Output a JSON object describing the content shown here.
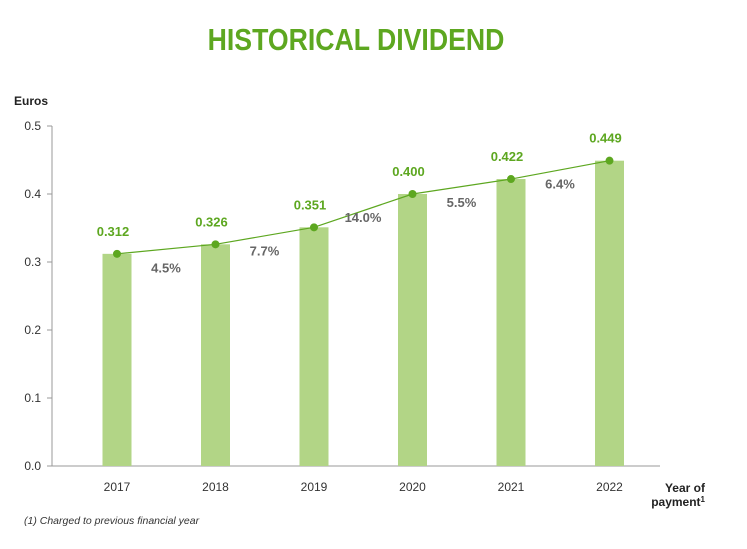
{
  "title": "HISTORICAL DIVIDEND",
  "footnote": "(1) Charged to previous financial year",
  "colors": {
    "accent": "#5da720",
    "bar": "#b2d586",
    "growth_text": "#666666",
    "axis": "#999999"
  },
  "chart_data": {
    "type": "bar",
    "title": "HISTORICAL DIVIDEND",
    "ylabel": "Euros",
    "xlabel": "Year of payment",
    "xlabel_superscript": "1",
    "ylim": [
      0,
      0.5
    ],
    "y_ticks": [
      "0.0",
      "0.1",
      "0.2",
      "0.3",
      "0.4",
      "0.5"
    ],
    "categories": [
      "2017",
      "2018",
      "2019",
      "2020",
      "2021",
      "2022"
    ],
    "values": [
      0.312,
      0.326,
      0.351,
      0.4,
      0.422,
      0.449
    ],
    "value_labels": [
      "0.312",
      "0.326",
      "0.351",
      "0.400",
      "0.422",
      "0.449"
    ],
    "growth_labels": [
      "4.5%",
      "7.7%",
      "14.0%",
      "5.5%",
      "6.4%"
    ],
    "overlay": "line",
    "grid": false
  }
}
